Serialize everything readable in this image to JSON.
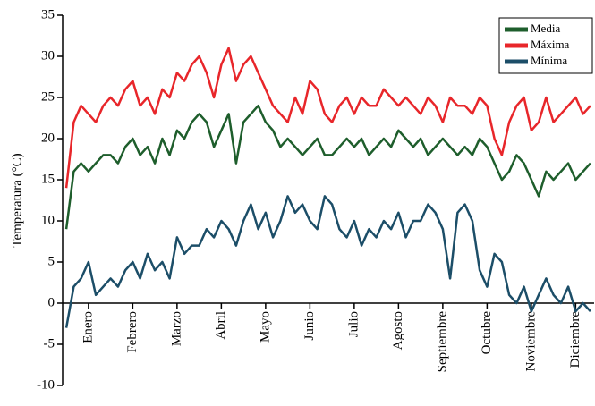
{
  "chart_data": {
    "type": "line",
    "y_label": "Temperatura (°C)",
    "categories": [
      null,
      null,
      null,
      "Enero",
      null,
      null,
      null,
      null,
      null,
      "Febrero",
      null,
      null,
      null,
      null,
      null,
      "Marzo",
      null,
      null,
      null,
      null,
      null,
      "Abril",
      null,
      null,
      null,
      null,
      null,
      "Mayo",
      null,
      null,
      null,
      null,
      null,
      "Junio",
      null,
      null,
      null,
      null,
      null,
      "Julio",
      null,
      null,
      null,
      null,
      null,
      "Agosto",
      null,
      null,
      null,
      null,
      null,
      "Septiembre",
      null,
      null,
      null,
      null,
      null,
      "Octubre",
      null,
      null,
      null,
      null,
      null,
      "Noviembre",
      null,
      null,
      null,
      null,
      null,
      "Diciembre",
      null,
      null
    ],
    "series": [
      {
        "name": "Media",
        "color": "#1e5e2c",
        "values": [
          9,
          16,
          17,
          16,
          17,
          18,
          18,
          17,
          19,
          20,
          18,
          19,
          17,
          20,
          18,
          21,
          20,
          22,
          23,
          22,
          19,
          21,
          23,
          17,
          22,
          23,
          24,
          22,
          21,
          19,
          20,
          19,
          18,
          19,
          20,
          18,
          18,
          19,
          20,
          19,
          20,
          18,
          19,
          20,
          19,
          21,
          20,
          19,
          20,
          18,
          19,
          20,
          19,
          18,
          19,
          18,
          20,
          19,
          17,
          15,
          16,
          18,
          17,
          15,
          13,
          16,
          15,
          16,
          17,
          15,
          16,
          17
        ]
      },
      {
        "name": "Máxima",
        "color": "#e8262a",
        "values": [
          14,
          22,
          24,
          23,
          22,
          24,
          25,
          24,
          26,
          27,
          24,
          25,
          23,
          26,
          25,
          28,
          27,
          29,
          30,
          28,
          25,
          29,
          31,
          27,
          29,
          30,
          28,
          26,
          24,
          23,
          22,
          25,
          23,
          27,
          26,
          23,
          22,
          24,
          25,
          23,
          25,
          24,
          24,
          26,
          25,
          24,
          25,
          24,
          23,
          25,
          24,
          22,
          25,
          24,
          24,
          23,
          25,
          24,
          20,
          18,
          22,
          24,
          25,
          21,
          22,
          25,
          22,
          23,
          24,
          25,
          23,
          24
        ]
      },
      {
        "name": "Mínima",
        "color": "#1c4e68",
        "values": [
          -3,
          2,
          3,
          5,
          1,
          2,
          3,
          2,
          4,
          5,
          3,
          6,
          4,
          5,
          3,
          8,
          6,
          7,
          7,
          9,
          8,
          10,
          9,
          7,
          10,
          12,
          9,
          11,
          8,
          10,
          13,
          11,
          12,
          10,
          9,
          13,
          12,
          9,
          8,
          10,
          7,
          9,
          8,
          10,
          9,
          11,
          8,
          10,
          10,
          12,
          11,
          9,
          3,
          11,
          12,
          10,
          4,
          2,
          6,
          5,
          1,
          0,
          2,
          -1,
          1,
          3,
          1,
          0,
          2,
          -1,
          0,
          -1
        ]
      }
    ],
    "ylim": [
      -10,
      35
    ],
    "yticks": [
      -10,
      -5,
      0,
      5,
      10,
      15,
      20,
      25,
      30,
      35
    ],
    "grid": false,
    "legend": "upper right"
  }
}
